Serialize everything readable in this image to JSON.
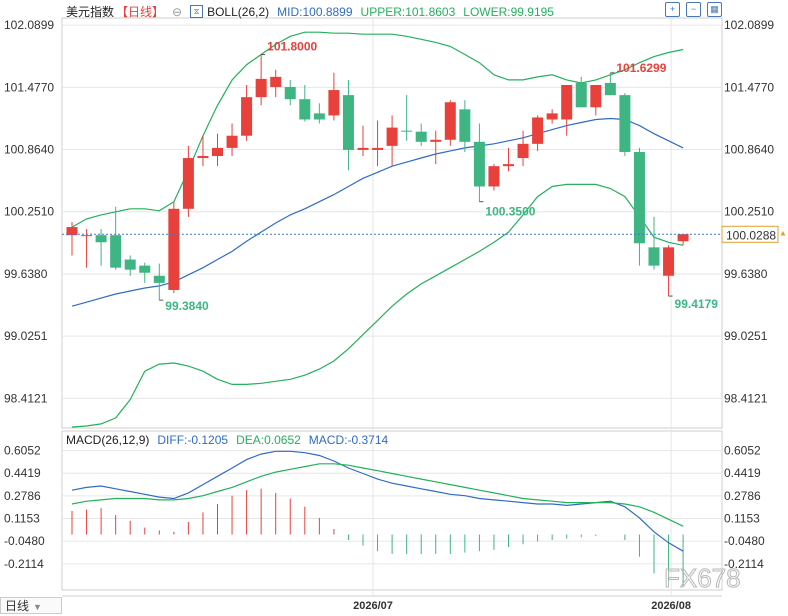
{
  "header": {
    "symbol": "美元指数",
    "period": "【日线】",
    "boll_label": "BOLL(26,2)",
    "mid": "MID:100.8899",
    "upper": "UPPER:101.8603",
    "lower": "LOWER:99.9195"
  },
  "macd_header": {
    "label": "MACD(26,12,9)",
    "diff": "DIFF:-0.1205",
    "dea": "DEA:0.0652",
    "macd": "MACD:-0.3714"
  },
  "bottom": {
    "period_tab": "日线"
  },
  "watermark": "FX678",
  "colors": {
    "up": "#e8413b",
    "down": "#3eb583",
    "mid": "#2f6cc4",
    "band": "#24b05c",
    "diff": "#2f6cc4",
    "dea": "#24b05c",
    "last_price": "#3a78d8",
    "grid": "#e6e6e6",
    "axis_text": "#333333"
  },
  "chart_data": [
    {
      "type": "candlestick",
      "title": "美元指数",
      "y_ticks": [
        "102.0899",
        "101.4770",
        "100.8640",
        "100.2510",
        "99.6380",
        "99.0251",
        "98.4121"
      ],
      "ylim": [
        98.12,
        102.16
      ],
      "x_ticks": [
        "2026/07",
        "2026/08"
      ],
      "last_price": "100.0288",
      "annotations": [
        "101.8000",
        "99.3840",
        "100.3500",
        "101.6299",
        "99.4179"
      ],
      "candles": [
        {
          "o": 100.02,
          "h": 100.15,
          "l": 99.82,
          "c": 100.1
        },
        {
          "o": 100.02,
          "h": 100.08,
          "l": 99.7,
          "c": 100.02
        },
        {
          "o": 100.02,
          "h": 100.08,
          "l": 99.72,
          "c": 99.95
        },
        {
          "o": 100.02,
          "h": 100.3,
          "l": 99.68,
          "c": 99.7
        },
        {
          "o": 99.78,
          "h": 99.82,
          "l": 99.62,
          "c": 99.68
        },
        {
          "o": 99.72,
          "h": 99.75,
          "l": 99.55,
          "c": 99.65
        },
        {
          "o": 99.62,
          "h": 99.74,
          "l": 99.38,
          "c": 99.55
        },
        {
          "o": 99.48,
          "h": 100.35,
          "l": 99.45,
          "c": 100.28
        },
        {
          "o": 100.28,
          "h": 100.9,
          "l": 100.2,
          "c": 100.78
        },
        {
          "o": 100.78,
          "h": 101.0,
          "l": 100.7,
          "c": 100.8
        },
        {
          "o": 100.8,
          "h": 101.02,
          "l": 100.7,
          "c": 100.88
        },
        {
          "o": 100.88,
          "h": 101.12,
          "l": 100.8,
          "c": 101.0
        },
        {
          "o": 101.0,
          "h": 101.5,
          "l": 100.95,
          "c": 101.38
        },
        {
          "o": 101.38,
          "h": 101.8,
          "l": 101.3,
          "c": 101.56
        },
        {
          "o": 101.48,
          "h": 101.65,
          "l": 101.38,
          "c": 101.58
        },
        {
          "o": 101.48,
          "h": 101.55,
          "l": 101.3,
          "c": 101.36
        },
        {
          "o": 101.36,
          "h": 101.5,
          "l": 101.14,
          "c": 101.16
        },
        {
          "o": 101.22,
          "h": 101.32,
          "l": 101.12,
          "c": 101.16
        },
        {
          "o": 101.2,
          "h": 101.62,
          "l": 101.15,
          "c": 101.45
        },
        {
          "o": 101.4,
          "h": 101.55,
          "l": 100.66,
          "c": 100.86
        },
        {
          "o": 100.86,
          "h": 101.1,
          "l": 100.8,
          "c": 100.88
        },
        {
          "o": 100.86,
          "h": 101.15,
          "l": 100.7,
          "c": 100.88
        },
        {
          "o": 100.9,
          "h": 101.2,
          "l": 100.7,
          "c": 101.08
        },
        {
          "o": 101.05,
          "h": 101.4,
          "l": 100.95,
          "c": 101.04
        },
        {
          "o": 101.04,
          "h": 101.12,
          "l": 100.9,
          "c": 100.94
        },
        {
          "o": 100.94,
          "h": 101.05,
          "l": 100.72,
          "c": 100.96
        },
        {
          "o": 100.96,
          "h": 101.35,
          "l": 100.9,
          "c": 101.33
        },
        {
          "o": 101.26,
          "h": 101.35,
          "l": 100.84,
          "c": 100.94
        },
        {
          "o": 100.94,
          "h": 101.12,
          "l": 100.35,
          "c": 100.5
        },
        {
          "o": 100.5,
          "h": 100.72,
          "l": 100.46,
          "c": 100.7
        },
        {
          "o": 100.7,
          "h": 100.88,
          "l": 100.65,
          "c": 100.72
        },
        {
          "o": 100.78,
          "h": 101.05,
          "l": 100.7,
          "c": 100.92
        },
        {
          "o": 100.92,
          "h": 101.2,
          "l": 100.85,
          "c": 101.18
        },
        {
          "o": 101.16,
          "h": 101.26,
          "l": 101.12,
          "c": 101.22
        },
        {
          "o": 101.16,
          "h": 101.5,
          "l": 101.0,
          "c": 101.5
        },
        {
          "o": 101.52,
          "h": 101.58,
          "l": 101.28,
          "c": 101.28
        },
        {
          "o": 101.28,
          "h": 101.5,
          "l": 101.2,
          "c": 101.5
        },
        {
          "o": 101.52,
          "h": 101.62,
          "l": 101.4,
          "c": 101.4
        },
        {
          "o": 101.4,
          "h": 101.42,
          "l": 100.8,
          "c": 100.84
        },
        {
          "o": 100.84,
          "h": 100.88,
          "l": 99.72,
          "c": 99.94
        },
        {
          "o": 99.9,
          "h": 100.2,
          "l": 99.68,
          "c": 99.72
        },
        {
          "o": 99.62,
          "h": 99.92,
          "l": 99.42,
          "c": 99.9
        },
        {
          "o": 99.96,
          "h": 100.02,
          "l": 99.92,
          "c": 100.03
        }
      ],
      "boll_mid": [
        99.32,
        99.36,
        99.4,
        99.44,
        99.47,
        99.5,
        99.52,
        99.56,
        99.63,
        99.7,
        99.78,
        99.86,
        99.96,
        100.05,
        100.14,
        100.22,
        100.28,
        100.35,
        100.42,
        100.5,
        100.58,
        100.64,
        100.7,
        100.74,
        100.78,
        100.82,
        100.85,
        100.88,
        100.9,
        100.92,
        100.95,
        100.98,
        101.02,
        101.06,
        101.1,
        101.13,
        101.16,
        101.17,
        101.16,
        101.1,
        101.02,
        100.95,
        100.88
      ],
      "boll_upper": [
        100.1,
        100.18,
        100.22,
        100.25,
        100.28,
        100.28,
        100.26,
        100.35,
        100.66,
        101.0,
        101.3,
        101.55,
        101.7,
        101.8,
        101.9,
        101.98,
        102.02,
        102.02,
        102.01,
        102.01,
        102.0,
        102.0,
        102.0,
        101.98,
        101.95,
        101.92,
        101.88,
        101.8,
        101.72,
        101.6,
        101.55,
        101.55,
        101.58,
        101.6,
        101.55,
        101.52,
        101.55,
        101.6,
        101.65,
        101.72,
        101.78,
        101.82,
        101.85
      ],
      "boll_lower": [
        98.13,
        98.14,
        98.16,
        98.22,
        98.4,
        98.68,
        98.75,
        98.76,
        98.73,
        98.68,
        98.6,
        98.55,
        98.55,
        98.56,
        98.58,
        98.6,
        98.64,
        98.7,
        98.78,
        98.9,
        99.04,
        99.18,
        99.32,
        99.44,
        99.54,
        99.62,
        99.7,
        99.78,
        99.86,
        99.95,
        100.05,
        100.22,
        100.4,
        100.5,
        100.52,
        100.52,
        100.52,
        100.48,
        100.4,
        100.2,
        100.0,
        99.95,
        99.92
      ]
    },
    {
      "type": "bar",
      "title": "MACD(26,12,9)",
      "y_ticks": [
        "0.6052",
        "0.4419",
        "0.2786",
        "0.1153",
        "-0.0480",
        "-0.2114"
      ],
      "ylim": [
        -0.4,
        0.66
      ],
      "series": [
        {
          "name": "DIFF",
          "values": [
            0.32,
            0.34,
            0.35,
            0.33,
            0.31,
            0.29,
            0.27,
            0.26,
            0.3,
            0.36,
            0.42,
            0.48,
            0.54,
            0.58,
            0.6,
            0.6,
            0.59,
            0.57,
            0.53,
            0.48,
            0.44,
            0.4,
            0.37,
            0.35,
            0.33,
            0.31,
            0.29,
            0.28,
            0.26,
            0.25,
            0.24,
            0.23,
            0.22,
            0.22,
            0.21,
            0.22,
            0.23,
            0.24,
            0.2,
            0.12,
            0.02,
            -0.06,
            -0.12
          ]
        },
        {
          "name": "DEA",
          "values": [
            0.22,
            0.24,
            0.25,
            0.26,
            0.26,
            0.26,
            0.25,
            0.25,
            0.26,
            0.28,
            0.31,
            0.34,
            0.38,
            0.42,
            0.45,
            0.47,
            0.49,
            0.51,
            0.51,
            0.5,
            0.48,
            0.46,
            0.44,
            0.42,
            0.4,
            0.38,
            0.36,
            0.34,
            0.32,
            0.3,
            0.28,
            0.26,
            0.25,
            0.24,
            0.23,
            0.23,
            0.23,
            0.23,
            0.22,
            0.2,
            0.16,
            0.11,
            0.06
          ]
        },
        {
          "name": "MACD",
          "values": [
            0.17,
            0.18,
            0.19,
            0.14,
            0.1,
            0.05,
            0.03,
            0.02,
            0.09,
            0.16,
            0.22,
            0.28,
            0.32,
            0.33,
            0.3,
            0.26,
            0.2,
            0.12,
            0.04,
            -0.04,
            -0.08,
            -0.12,
            -0.14,
            -0.14,
            -0.14,
            -0.14,
            -0.14,
            -0.13,
            -0.12,
            -0.11,
            -0.09,
            -0.07,
            -0.05,
            -0.04,
            -0.03,
            -0.02,
            -0.01,
            0.0,
            -0.04,
            -0.16,
            -0.28,
            -0.34,
            -0.37
          ]
        }
      ]
    }
  ]
}
